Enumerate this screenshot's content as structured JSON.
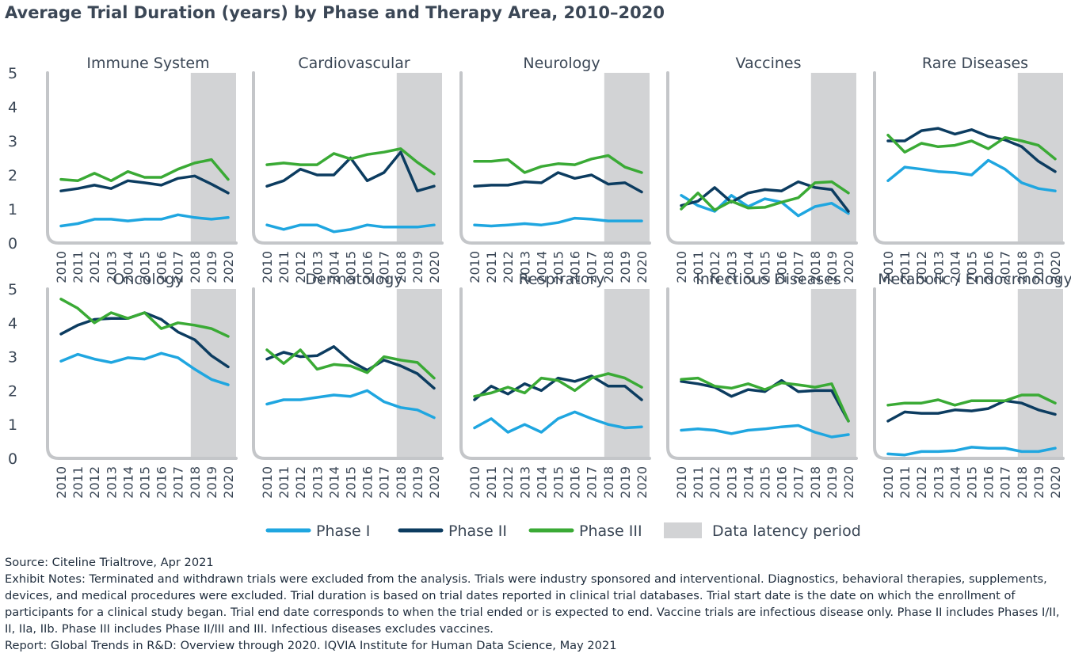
{
  "title": "Average Trial Duration (years) by Phase and Therapy Area, 2010–2020",
  "chart_data": {
    "type": "line",
    "title": "Average Trial Duration (years) by Phase and Therapy Area, 2010–2020",
    "x": [
      "2010",
      "2011",
      "2012",
      "2013",
      "2014",
      "2015",
      "2016",
      "2017",
      "2018",
      "2019",
      "2020"
    ],
    "ylim": [
      0,
      5
    ],
    "yticks": [
      "0",
      "1",
      "2",
      "3",
      "4",
      "5"
    ],
    "grid": false,
    "legend_position": "bottom",
    "series_styles": [
      {
        "name": "Phase I",
        "color": "#1fa6e0"
      },
      {
        "name": "Phase II",
        "color": "#0c3c60"
      },
      {
        "name": "Phase III",
        "color": "#3aaa35"
      }
    ],
    "latency": {
      "label": "Data latency period",
      "start": "2018",
      "end": "2020",
      "color": "#d2d3d5"
    },
    "panels": [
      {
        "name": "Immune System",
        "series": [
          {
            "name": "Phase I",
            "values": [
              0.5,
              0.57,
              0.7,
              0.7,
              0.65,
              0.7,
              0.7,
              0.83,
              0.75,
              0.7,
              0.75
            ]
          },
          {
            "name": "Phase II",
            "values": [
              1.53,
              1.6,
              1.7,
              1.6,
              1.83,
              1.77,
              1.7,
              1.9,
              1.97,
              1.73,
              1.47
            ]
          },
          {
            "name": "Phase III",
            "values": [
              1.87,
              1.83,
              2.05,
              1.83,
              2.1,
              1.93,
              1.93,
              2.17,
              2.35,
              2.45,
              1.87
            ]
          }
        ]
      },
      {
        "name": "Cardiovascular",
        "series": [
          {
            "name": "Phase I",
            "values": [
              0.53,
              0.4,
              0.53,
              0.53,
              0.33,
              0.4,
              0.53,
              0.47,
              0.47,
              0.47,
              0.53
            ]
          },
          {
            "name": "Phase II",
            "values": [
              1.67,
              1.83,
              2.17,
              2.0,
              2.0,
              2.5,
              1.83,
              2.07,
              2.67,
              1.53,
              1.67
            ]
          },
          {
            "name": "Phase III",
            "values": [
              2.3,
              2.35,
              2.3,
              2.3,
              2.63,
              2.47,
              2.6,
              2.67,
              2.77,
              2.37,
              2.03
            ]
          }
        ]
      },
      {
        "name": "Neurology",
        "series": [
          {
            "name": "Phase I",
            "values": [
              0.53,
              0.5,
              0.53,
              0.57,
              0.53,
              0.6,
              0.73,
              0.7,
              0.65,
              0.65,
              0.65
            ]
          },
          {
            "name": "Phase II",
            "values": [
              1.67,
              1.7,
              1.7,
              1.8,
              1.77,
              2.07,
              1.9,
              2.0,
              1.73,
              1.77,
              1.5
            ]
          },
          {
            "name": "Phase III",
            "values": [
              2.4,
              2.4,
              2.45,
              2.07,
              2.25,
              2.33,
              2.3,
              2.47,
              2.57,
              2.23,
              2.07
            ]
          }
        ]
      },
      {
        "name": "Vaccines",
        "series": [
          {
            "name": "Phase I",
            "values": [
              1.4,
              1.1,
              0.93,
              1.4,
              1.07,
              1.3,
              1.2,
              0.8,
              1.07,
              1.17,
              0.87
            ]
          },
          {
            "name": "Phase II",
            "values": [
              1.1,
              1.23,
              1.63,
              1.2,
              1.47,
              1.57,
              1.53,
              1.8,
              1.63,
              1.57,
              0.93
            ]
          },
          {
            "name": "Phase III",
            "values": [
              1.0,
              1.47,
              0.97,
              1.23,
              1.03,
              1.05,
              1.2,
              1.33,
              1.77,
              1.8,
              1.47
            ]
          }
        ]
      },
      {
        "name": "Rare Diseases",
        "series": [
          {
            "name": "Phase I",
            "values": [
              1.83,
              2.23,
              2.17,
              2.1,
              2.07,
              2.0,
              2.43,
              2.17,
              1.77,
              1.6,
              1.53
            ]
          },
          {
            "name": "Phase II",
            "values": [
              3.0,
              3.0,
              3.3,
              3.37,
              3.2,
              3.33,
              3.13,
              3.03,
              2.83,
              2.4,
              2.1
            ]
          },
          {
            "name": "Phase III",
            "values": [
              3.17,
              2.67,
              2.93,
              2.83,
              2.87,
              3.0,
              2.77,
              3.1,
              3.0,
              2.87,
              2.47
            ]
          }
        ]
      },
      {
        "name": "Oncology",
        "series": [
          {
            "name": "Phase I",
            "values": [
              2.87,
              3.07,
              2.93,
              2.83,
              2.97,
              2.93,
              3.1,
              2.97,
              2.63,
              2.33,
              2.17
            ]
          },
          {
            "name": "Phase II",
            "values": [
              3.67,
              3.93,
              4.1,
              4.13,
              4.13,
              4.3,
              4.1,
              3.73,
              3.5,
              3.03,
              2.7
            ]
          },
          {
            "name": "Phase III",
            "values": [
              4.7,
              4.43,
              4.0,
              4.3,
              4.13,
              4.3,
              3.83,
              4.0,
              3.93,
              3.83,
              3.6
            ]
          }
        ]
      },
      {
        "name": "Dermatology",
        "series": [
          {
            "name": "Phase I",
            "values": [
              1.6,
              1.73,
              1.73,
              1.8,
              1.87,
              1.83,
              2.0,
              1.67,
              1.5,
              1.43,
              1.2
            ]
          },
          {
            "name": "Phase II",
            "values": [
              2.93,
              3.13,
              3.0,
              3.03,
              3.3,
              2.87,
              2.6,
              2.9,
              2.73,
              2.5,
              2.07
            ]
          },
          {
            "name": "Phase III",
            "values": [
              3.2,
              2.8,
              3.2,
              2.63,
              2.77,
              2.73,
              2.53,
              3.0,
              2.9,
              2.83,
              2.37
            ]
          }
        ]
      },
      {
        "name": "Respiratory",
        "series": [
          {
            "name": "Phase I",
            "values": [
              0.9,
              1.17,
              0.77,
              1.0,
              0.77,
              1.17,
              1.37,
              1.17,
              1.0,
              0.9,
              0.93
            ]
          },
          {
            "name": "Phase II",
            "values": [
              1.73,
              2.13,
              1.9,
              2.2,
              2.0,
              2.37,
              2.27,
              2.43,
              2.13,
              2.13,
              1.73
            ]
          },
          {
            "name": "Phase III",
            "values": [
              1.83,
              1.93,
              2.1,
              1.93,
              2.37,
              2.3,
              2.0,
              2.37,
              2.5,
              2.37,
              2.1
            ]
          }
        ]
      },
      {
        "name": "Infectious Diseases",
        "series": [
          {
            "name": "Phase I",
            "values": [
              0.83,
              0.87,
              0.83,
              0.73,
              0.83,
              0.87,
              0.93,
              0.97,
              0.77,
              0.63,
              0.7
            ]
          },
          {
            "name": "Phase II",
            "values": [
              2.27,
              2.2,
              2.1,
              1.83,
              2.03,
              1.97,
              2.3,
              1.97,
              2.0,
              2.0,
              1.1
            ]
          },
          {
            "name": "Phase III",
            "values": [
              2.33,
              2.37,
              2.13,
              2.07,
              2.2,
              2.03,
              2.23,
              2.17,
              2.1,
              2.2,
              1.1
            ]
          }
        ]
      },
      {
        "name": "Metabolic / Endocrinology",
        "series": [
          {
            "name": "Phase I",
            "values": [
              0.13,
              0.1,
              0.2,
              0.2,
              0.23,
              0.33,
              0.3,
              0.3,
              0.2,
              0.2,
              0.3
            ]
          },
          {
            "name": "Phase II",
            "values": [
              1.1,
              1.37,
              1.33,
              1.33,
              1.43,
              1.4,
              1.47,
              1.7,
              1.63,
              1.43,
              1.3
            ]
          },
          {
            "name": "Phase III",
            "values": [
              1.57,
              1.63,
              1.63,
              1.73,
              1.57,
              1.7,
              1.7,
              1.7,
              1.87,
              1.87,
              1.63
            ]
          }
        ]
      }
    ]
  },
  "notes": {
    "source": "Source: Citeline Trialtrove, Apr 2021",
    "exhibit_notes": "Exhibit Notes: Terminated and withdrawn trials were excluded from the analysis. Trials were industry sponsored and interventional. Diagnostics, behavioral therapies, supplements, devices, and medical procedures were excluded. Trial duration is based on trial dates reported in clinical trial databases. Trial start date is the date on which the enrollment of participants for a clinical study began. Trial end date corresponds to when the trial ended or is expected to end. Vaccine trials are infectious disease only. Phase II includes Phases I/II, II, IIa, IIb. Phase III includes Phase II/III and III. Infectious diseases excludes vaccines.",
    "report": "Report: Global Trends in R&D: Overview through 2020. IQVIA Institute for Human Data Science, May 2021"
  }
}
